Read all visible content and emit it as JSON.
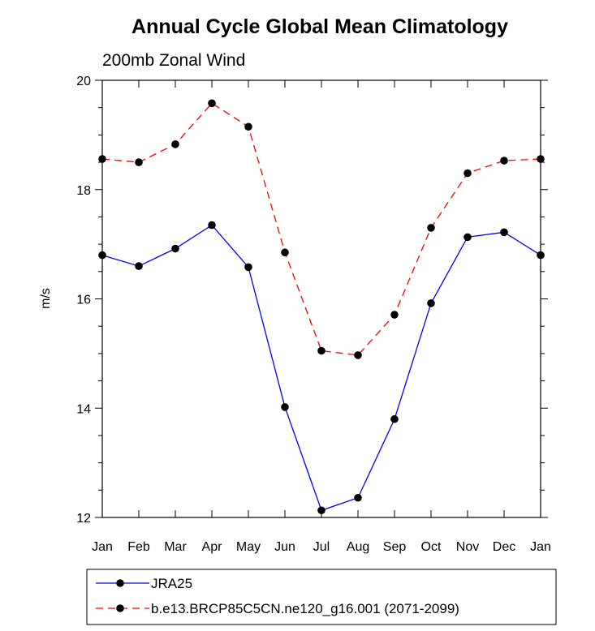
{
  "chart_data": {
    "type": "line",
    "title": "Annual Cycle Global Mean Climatology",
    "subtitle": "200mb Zonal Wind",
    "xlabel": "",
    "ylabel": "m/s",
    "ylim": [
      12,
      20
    ],
    "yticks": [
      12,
      14,
      16,
      18,
      20
    ],
    "categories": [
      "Jan",
      "Feb",
      "Mar",
      "Apr",
      "May",
      "Jun",
      "Jul",
      "Aug",
      "Sep",
      "Oct",
      "Nov",
      "Dec",
      "Jan"
    ],
    "series": [
      {
        "name": "JRA25",
        "color": "#0000ff",
        "dash": "solid",
        "values": [
          16.8,
          16.6,
          16.92,
          17.35,
          16.58,
          14.02,
          12.13,
          12.36,
          13.8,
          15.92,
          17.13,
          17.22,
          16.8
        ]
      },
      {
        "name": "b.e13.BRCP85C5CN.ne120_g16.001 (2071-2099)",
        "color": "#ff0000",
        "dash": "dashed",
        "values": [
          18.56,
          18.5,
          18.83,
          19.58,
          19.15,
          16.85,
          15.05,
          14.97,
          15.71,
          17.3,
          18.3,
          18.53,
          18.56
        ]
      }
    ],
    "grid": false,
    "legend_position": "bottom-left"
  }
}
